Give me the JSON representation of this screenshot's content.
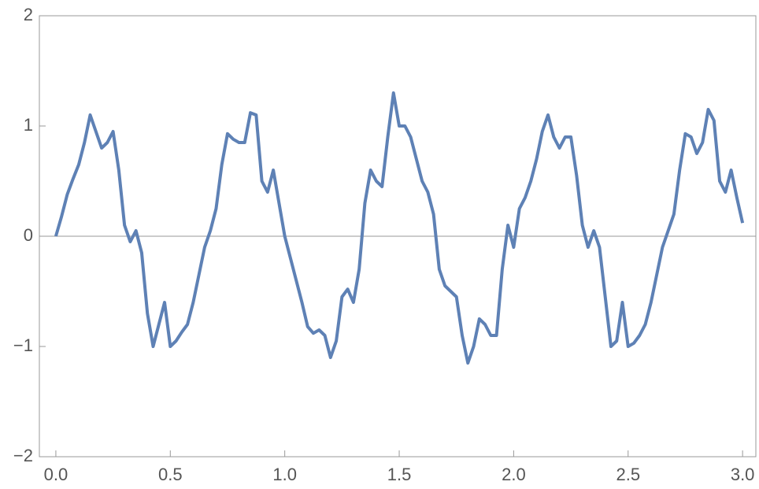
{
  "chart_data": {
    "type": "line",
    "x": [
      0,
      0.025,
      0.05,
      0.075,
      0.1,
      0.125,
      0.15,
      0.175,
      0.2,
      0.225,
      0.25,
      0.275,
      0.3,
      0.325,
      0.35,
      0.375,
      0.4,
      0.425,
      0.45,
      0.475,
      0.5,
      0.525,
      0.55,
      0.575,
      0.6,
      0.625,
      0.65,
      0.675,
      0.7,
      0.725,
      0.75,
      0.775,
      0.8,
      0.825,
      0.85,
      0.875,
      0.9,
      0.925,
      0.95,
      0.975,
      1.0,
      1.025,
      1.05,
      1.075,
      1.1,
      1.125,
      1.15,
      1.175,
      1.2,
      1.225,
      1.25,
      1.275,
      1.3,
      1.325,
      1.35,
      1.375,
      1.4,
      1.425,
      1.45,
      1.475,
      1.5,
      1.525,
      1.55,
      1.575,
      1.6,
      1.625,
      1.65,
      1.675,
      1.7,
      1.725,
      1.75,
      1.775,
      1.8,
      1.825,
      1.85,
      1.875,
      1.9,
      1.925,
      1.95,
      1.975,
      2.0,
      2.025,
      2.05,
      2.075,
      2.1,
      2.125,
      2.15,
      2.175,
      2.2,
      2.225,
      2.25,
      2.275,
      2.3,
      2.325,
      2.35,
      2.375,
      2.4,
      2.425,
      2.45,
      2.475,
      2.5,
      2.525,
      2.55,
      2.575,
      2.6,
      2.625,
      2.65,
      2.675,
      2.7,
      2.725,
      2.75,
      2.775,
      2.8,
      2.825,
      2.85,
      2.875,
      2.9,
      2.925,
      2.95,
      2.975,
      3.0
    ],
    "values": [
      0,
      0.18,
      0.38,
      0.52,
      0.65,
      0.85,
      1.1,
      0.95,
      0.8,
      0.85,
      0.95,
      0.6,
      0.1,
      -0.05,
      0.05,
      -0.15,
      -0.7,
      -1.0,
      -0.8,
      -0.6,
      -1.0,
      -0.95,
      -0.87,
      -0.8,
      -0.6,
      -0.35,
      -0.1,
      0.05,
      0.25,
      0.65,
      0.93,
      0.88,
      0.85,
      0.85,
      1.12,
      1.1,
      0.5,
      0.4,
      0.6,
      0.3,
      0.0,
      -0.2,
      -0.4,
      -0.6,
      -0.82,
      -0.88,
      -0.85,
      -0.9,
      -1.1,
      -0.95,
      -0.55,
      -0.48,
      -0.6,
      -0.3,
      0.3,
      0.6,
      0.5,
      0.45,
      0.9,
      1.3,
      1.0,
      1.0,
      0.9,
      0.7,
      0.5,
      0.4,
      0.2,
      -0.3,
      -0.45,
      -0.5,
      -0.55,
      -0.9,
      -1.15,
      -1.0,
      -0.75,
      -0.8,
      -0.9,
      -0.9,
      -0.3,
      0.1,
      -0.1,
      0.25,
      0.35,
      0.5,
      0.7,
      0.95,
      1.1,
      0.9,
      0.8,
      0.9,
      0.9,
      0.55,
      0.1,
      -0.1,
      0.05,
      -0.1,
      -0.55,
      -1.0,
      -0.95,
      -0.6,
      -1.0,
      -0.97,
      -0.9,
      -0.8,
      -0.6,
      -0.35,
      -0.1,
      0.05,
      0.2,
      0.6,
      0.93,
      0.9,
      0.75,
      0.85,
      1.15,
      1.05,
      0.5,
      0.4,
      0.6,
      0.35,
      0.12
    ],
    "color": "#5e81b5",
    "xlim": [
      -0.072,
      3.058
    ],
    "ylim": [
      -2,
      2
    ],
    "xticks": [
      {
        "value": 0,
        "label": "0.0"
      },
      0.5,
      {
        "value": 1,
        "label": "1.0"
      },
      1.5,
      {
        "value": 2,
        "label": "2.0"
      },
      2.5,
      {
        "value": 3,
        "label": "3.0"
      }
    ],
    "yticks": [
      {
        "value": -2,
        "label": "−2"
      },
      {
        "value": -1,
        "label": "−1"
      },
      0,
      1,
      2
    ]
  }
}
